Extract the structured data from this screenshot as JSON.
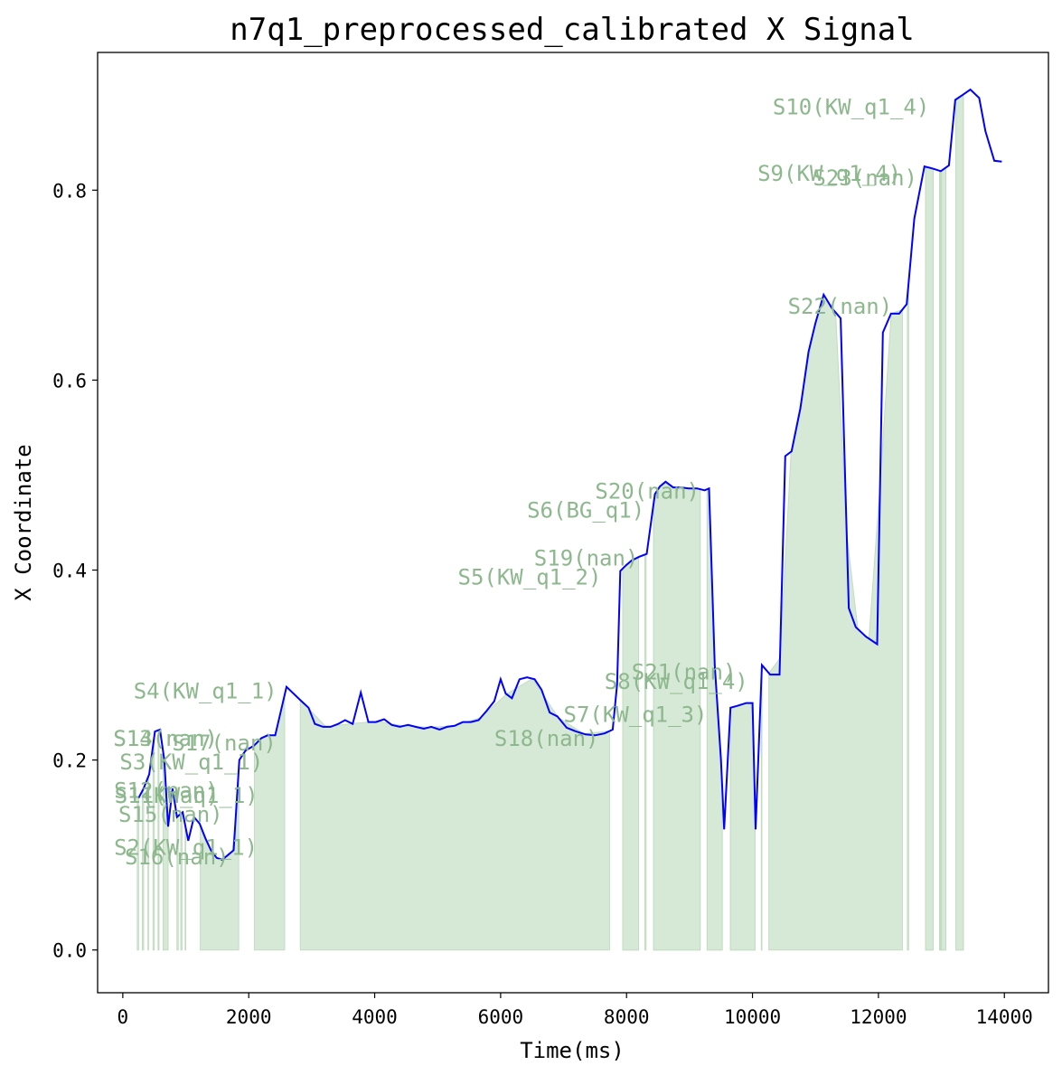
{
  "chart_data": {
    "type": "line",
    "title": "n7q1_preprocessed_calibrated X Signal",
    "xlabel": "Time(ms)",
    "ylabel": "X Coordinate",
    "xlim": [
      -400,
      14700
    ],
    "ylim": [
      -0.045,
      0.945
    ],
    "xticks": [
      0,
      2000,
      4000,
      6000,
      8000,
      10000,
      12000,
      14000
    ],
    "yticks": [
      0.0,
      0.2,
      0.4,
      0.6,
      0.8
    ],
    "xtick_labels": [
      "0",
      "2000",
      "4000",
      "6000",
      "8000",
      "10000",
      "12000",
      "14000"
    ],
    "ytick_labels": [
      "0.0",
      "0.2",
      "0.4",
      "0.6",
      "0.8"
    ],
    "grid": false,
    "line_color": "#0000ff",
    "fill_color": "#d6e8d6",
    "label_color": "#8db88d",
    "series": [
      {
        "x": [
          250,
          330,
          420,
          510,
          590,
          660,
          720,
          790,
          860,
          950,
          1040,
          1130,
          1220,
          1310,
          1400,
          1490,
          1580,
          1670,
          1760,
          1850,
          1950,
          2080,
          2200,
          2300,
          2420,
          2600,
          2820,
          2950,
          3050,
          3180,
          3300,
          3420,
          3530,
          3650,
          3780,
          3900,
          4020,
          4150,
          4270,
          4400,
          4530,
          4650,
          4780,
          4900,
          5030,
          5150,
          5270,
          5400,
          5530,
          5650,
          5780,
          5900,
          6000,
          6080,
          6180,
          6300,
          6420,
          6540,
          6650,
          6780,
          6900,
          7050,
          7200,
          7350,
          7500,
          7650,
          7780,
          7850,
          7900,
          7990,
          8080,
          8200,
          8320,
          8450,
          8530,
          8620,
          8740,
          8860,
          8990,
          9120,
          9240,
          9310,
          9400,
          9500,
          9550,
          9650,
          9760,
          9900,
          10000,
          10050,
          10150,
          10280,
          10430,
          10520,
          10620,
          10760,
          10890,
          11000,
          11130,
          11260,
          11400,
          11530,
          11640,
          11800,
          11980,
          12070,
          12200,
          12330,
          12450,
          12570,
          12730,
          12850,
          12990,
          13120,
          13220,
          13330,
          13460,
          13600,
          13700,
          13840,
          13960
        ],
        "y": [
          0.16,
          0.17,
          0.185,
          0.23,
          0.232,
          0.2,
          0.13,
          0.17,
          0.14,
          0.145,
          0.115,
          0.14,
          0.133,
          0.118,
          0.105,
          0.097,
          0.095,
          0.1,
          0.105,
          0.2,
          0.21,
          0.215,
          0.223,
          0.226,
          0.226,
          0.277,
          0.263,
          0.255,
          0.238,
          0.235,
          0.235,
          0.238,
          0.242,
          0.238,
          0.271,
          0.24,
          0.24,
          0.243,
          0.237,
          0.235,
          0.237,
          0.235,
          0.233,
          0.235,
          0.232,
          0.235,
          0.236,
          0.24,
          0.24,
          0.242,
          0.252,
          0.262,
          0.285,
          0.27,
          0.265,
          0.285,
          0.287,
          0.285,
          0.274,
          0.25,
          0.246,
          0.234,
          0.23,
          0.227,
          0.226,
          0.228,
          0.232,
          0.28,
          0.399,
          0.405,
          0.41,
          0.414,
          0.417,
          0.48,
          0.488,
          0.493,
          0.487,
          0.487,
          0.486,
          0.486,
          0.484,
          0.486,
          0.3,
          0.2,
          0.127,
          0.255,
          0.257,
          0.26,
          0.26,
          0.127,
          0.3,
          0.29,
          0.29,
          0.52,
          0.525,
          0.57,
          0.63,
          0.66,
          0.69,
          0.676,
          0.665,
          0.36,
          0.34,
          0.33,
          0.322,
          0.65,
          0.67,
          0.67,
          0.68,
          0.77,
          0.825,
          0.823,
          0.82,
          0.826,
          0.895,
          0.9,
          0.906,
          0.897,
          0.862,
          0.831,
          0.83
        ]
      }
    ],
    "segments": [
      {
        "label": "S1(KW_q1_1)",
        "x0": 230,
        "x1": 250,
        "lx": -130,
        "ly": 0.155
      },
      {
        "label": "S2(KW_q1_1)",
        "x0": 310,
        "x1": 330,
        "lx": -140,
        "ly": 0.1
      },
      {
        "label": "S3(KW_q1_1)",
        "x0": 480,
        "x1": 500,
        "lx": -50,
        "ly": 0.19
      },
      {
        "label": "S4(KW_q1_1)",
        "x0": 640,
        "x1": 720,
        "lx": 170,
        "ly": 0.265
      },
      {
        "label": "S5(KW_q1_2)",
        "x0": 7940,
        "x1": 8190,
        "lx": 5320,
        "ly": 0.385
      },
      {
        "label": "S6(BG_q1)",
        "x0": 8430,
        "x1": 9170,
        "lx": 6420,
        "ly": 0.455
      },
      {
        "label": "S7(KW_q1_3)",
        "x0": 9280,
        "x1": 9520,
        "lx": 7000,
        "ly": 0.24
      },
      {
        "label": "S8(KW_q1_4)",
        "x0": 9650,
        "x1": 10040,
        "lx": 7650,
        "ly": 0.275
      },
      {
        "label": "S9(KW_q1_4)",
        "x0": 12970,
        "x1": 13070,
        "lx": 10080,
        "ly": 0.81
      },
      {
        "label": "S10(KW_q1_4)",
        "x0": 13230,
        "x1": 13350,
        "lx": 10320,
        "ly": 0.88
      },
      {
        "label": "S11(nan)",
        "x0": 400,
        "x1": 410,
        "lx": -130,
        "ly": 0.155
      },
      {
        "label": "S12(nan)",
        "x0": 560,
        "x1": 575,
        "lx": -140,
        "ly": 0.16
      },
      {
        "label": "S13(nan)",
        "x0": 860,
        "x1": 880,
        "lx": -150,
        "ly": 0.215
      },
      {
        "label": "S14(nan)",
        "x0": 920,
        "x1": 940,
        "lx": -150,
        "ly": 0.215
      },
      {
        "label": "S15(nan)",
        "x0": 990,
        "x1": 1000,
        "lx": -70,
        "ly": 0.135
      },
      {
        "label": "S16(nan)",
        "x0": 1230,
        "x1": 1840,
        "lx": 30,
        "ly": 0.09
      },
      {
        "label": "S17(nan)",
        "x0": 2090,
        "x1": 2570,
        "lx": 780,
        "ly": 0.21
      },
      {
        "label": "S18(nan)",
        "x0": 2820,
        "x1": 7730,
        "lx": 5900,
        "ly": 0.215
      },
      {
        "label": "S19(nan)",
        "x0": 8290,
        "x1": 8310,
        "lx": 6530,
        "ly": 0.405
      },
      {
        "label": "S20(nan)",
        "x0": 10260,
        "x1": 12380,
        "lx": 7500,
        "ly": 0.475
      },
      {
        "label": "S21(nan)",
        "x0": 12460,
        "x1": 12480,
        "lx": 8080,
        "ly": 0.285
      },
      {
        "label": "S22(nan)",
        "x0": 12750,
        "x1": 12870,
        "lx": 10560,
        "ly": 0.67
      },
      {
        "label": "S23(nan)",
        "x0": 12980,
        "x1": 12990,
        "lx": 10960,
        "ly": 0.805
      }
    ],
    "extra_fills": [
      {
        "x0": 7940,
        "x1": 8190
      },
      {
        "x0": 8430,
        "x1": 9170
      },
      {
        "x0": 9280,
        "x1": 9520
      },
      {
        "x0": 9650,
        "x1": 10040
      },
      {
        "x0": 10140,
        "x1": 10150
      },
      {
        "x0": 12750,
        "x1": 12870
      },
      {
        "x0": 13000,
        "x1": 13070
      },
      {
        "x0": 13230,
        "x1": 13350
      }
    ]
  }
}
